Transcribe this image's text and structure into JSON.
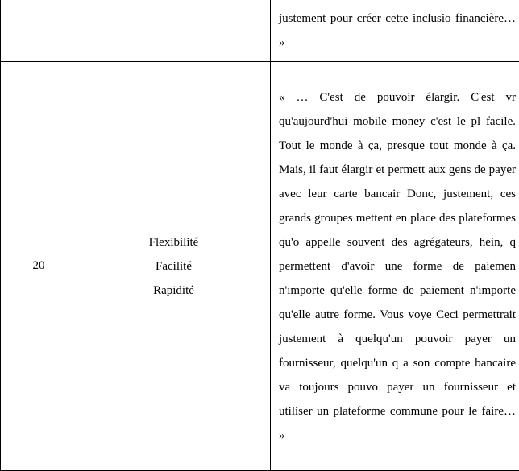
{
  "table": {
    "rows": [
      {
        "num": "",
        "keywords": [],
        "quote": "justement pour créer cette inclusio financière… »"
      },
      {
        "num": "20",
        "keywords": [
          "Flexibilité",
          "Facilité",
          "Rapidité"
        ],
        "quote": "« … C'est de pouvoir élargir. C'est vr qu'aujourd'hui mobile money c'est le pl facile. Tout le monde à ça, presque tout monde à ça. Mais, il faut élargir et permett aux gens de payer avec leur carte bancair Donc, justement, ces grands groupes mettent en place des plateformes qu'o appelle souvent des agrégateurs, hein, q permettent d'avoir une forme de paiemen n'importe qu'elle forme de paiement n'importe qu'elle autre forme. Vous voye Ceci permettrait justement à quelqu'un pouvoir payer un fournisseur, quelqu'un q a son compte bancaire va toujours pouvo payer un fournisseur et utiliser un plateforme commune pour le faire… »"
      }
    ]
  },
  "styles": {
    "border_color": "#000000",
    "background": "#ffffff",
    "font_family": "Times New Roman",
    "font_size_pt": 12,
    "line_height": 2.0
  }
}
